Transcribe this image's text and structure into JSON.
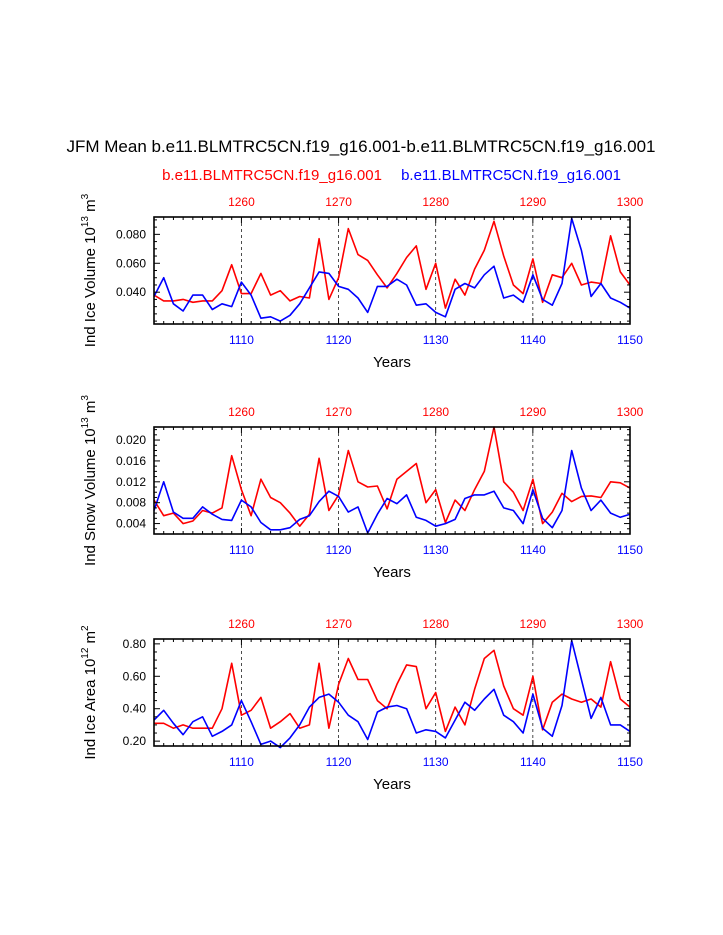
{
  "title": "JFM Mean b.e11.BLMTRC5CN.f19_g16.001-b.e11.BLMTRC5CN.f19_g16.001",
  "legend": {
    "red_label": "b.e11.BLMTRC5CN.f19_g16.001",
    "blue_label": "b.e11.BLMTRC5CN.f19_g16.001"
  },
  "colors": {
    "red": "#ff0000",
    "blue": "#0000ff",
    "axis": "#000000"
  },
  "chart_data": [
    {
      "type": "line",
      "id": "ice-volume",
      "ylabel_main": "Ind Ice Volume 10",
      "ylabel_sup": "13",
      "ylabel_unit": " m",
      "ylabel_unit_sup": "3",
      "xlabel": "Years",
      "ylim": [
        0.018,
        0.092
      ],
      "yticks": [
        0.04,
        0.06,
        0.08
      ],
      "ytick_labels": [
        "0.040",
        "0.060",
        "0.080"
      ],
      "bottom_axis": {
        "range": [
          1101,
          1150
        ],
        "ticks": [
          1110,
          1120,
          1130,
          1140,
          1150
        ],
        "labels": [
          "1110",
          "1120",
          "1130",
          "1140",
          "1150"
        ]
      },
      "top_axis": {
        "ticks": [
          1260,
          1270,
          1280,
          1290,
          1300
        ],
        "labels": [
          "1260",
          "1270",
          "1280",
          "1290",
          "1300"
        ]
      },
      "series": [
        {
          "name": "red",
          "values": [
            0.038,
            0.034,
            0.034,
            0.035,
            0.033,
            0.034,
            0.034,
            0.041,
            0.059,
            0.039,
            0.039,
            0.053,
            0.038,
            0.041,
            0.034,
            0.037,
            0.036,
            0.077,
            0.035,
            0.05,
            0.084,
            0.066,
            0.062,
            0.052,
            0.043,
            0.053,
            0.064,
            0.072,
            0.042,
            0.06,
            0.029,
            0.049,
            0.038,
            0.056,
            0.069,
            0.089,
            0.065,
            0.045,
            0.039,
            0.063,
            0.033,
            0.052,
            0.05,
            0.06,
            0.045,
            0.047,
            0.046,
            0.079,
            0.054,
            0.045
          ]
        },
        {
          "name": "blue",
          "values": [
            0.037,
            0.05,
            0.032,
            0.027,
            0.038,
            0.038,
            0.028,
            0.032,
            0.03,
            0.047,
            0.038,
            0.022,
            0.023,
            0.02,
            0.024,
            0.032,
            0.043,
            0.054,
            0.053,
            0.044,
            0.042,
            0.036,
            0.026,
            0.044,
            0.044,
            0.049,
            0.045,
            0.031,
            0.032,
            0.026,
            0.023,
            0.042,
            0.046,
            0.043,
            0.052,
            0.058,
            0.036,
            0.038,
            0.033,
            0.052,
            0.035,
            0.031,
            0.046,
            0.091,
            0.069,
            0.037,
            0.046,
            0.036,
            0.033,
            0.029
          ]
        }
      ]
    },
    {
      "type": "line",
      "id": "snow-volume",
      "ylabel_main": "Ind Snow Volume 10",
      "ylabel_sup": "13",
      "ylabel_unit": " m",
      "ylabel_unit_sup": "3",
      "xlabel": "Years",
      "ylim": [
        0.002,
        0.0225
      ],
      "yticks": [
        0.004,
        0.008,
        0.012,
        0.016,
        0.02
      ],
      "ytick_labels": [
        "0.004",
        "0.008",
        "0.012",
        "0.016",
        "0.020"
      ],
      "bottom_axis": {
        "range": [
          1101,
          1150
        ],
        "ticks": [
          1110,
          1120,
          1130,
          1140,
          1150
        ],
        "labels": [
          "1110",
          "1120",
          "1130",
          "1140",
          "1150"
        ]
      },
      "top_axis": {
        "ticks": [
          1260,
          1270,
          1280,
          1290,
          1300
        ],
        "labels": [
          "1260",
          "1270",
          "1280",
          "1290",
          "1300"
        ]
      },
      "series": [
        {
          "name": "red",
          "values": [
            0.0085,
            0.0055,
            0.006,
            0.004,
            0.0045,
            0.0065,
            0.006,
            0.007,
            0.017,
            0.0105,
            0.0055,
            0.0125,
            0.009,
            0.008,
            0.006,
            0.0035,
            0.0058,
            0.0165,
            0.0065,
            0.0095,
            0.018,
            0.012,
            0.011,
            0.0112,
            0.0068,
            0.0125,
            0.014,
            0.0155,
            0.008,
            0.0105,
            0.0042,
            0.0085,
            0.0065,
            0.0105,
            0.014,
            0.0225,
            0.012,
            0.01,
            0.0065,
            0.0125,
            0.004,
            0.0062,
            0.0098,
            0.0082,
            0.0092,
            0.0093,
            0.009,
            0.012,
            0.0118,
            0.0108
          ]
        },
        {
          "name": "blue",
          "values": [
            0.0065,
            0.012,
            0.0062,
            0.005,
            0.005,
            0.0072,
            0.0058,
            0.0048,
            0.0046,
            0.0085,
            0.0072,
            0.0042,
            0.0028,
            0.0028,
            0.0032,
            0.0048,
            0.0055,
            0.0082,
            0.0102,
            0.0092,
            0.0062,
            0.0072,
            0.0022,
            0.0058,
            0.0088,
            0.0078,
            0.0095,
            0.0052,
            0.0046,
            0.0035,
            0.004,
            0.0048,
            0.0088,
            0.0095,
            0.0095,
            0.0102,
            0.007,
            0.0065,
            0.004,
            0.0105,
            0.005,
            0.0032,
            0.0065,
            0.018,
            0.0108,
            0.0065,
            0.0085,
            0.006,
            0.0052,
            0.0058
          ]
        }
      ]
    },
    {
      "type": "line",
      "id": "ice-area",
      "ylabel_main": "Ind Ice Area 10",
      "ylabel_sup": "12",
      "ylabel_unit": " m",
      "ylabel_unit_sup": "2",
      "xlabel": "Years",
      "ylim": [
        0.17,
        0.83
      ],
      "yticks": [
        0.2,
        0.4,
        0.6,
        0.8
      ],
      "ytick_labels": [
        "0.20",
        "0.40",
        "0.60",
        "0.80"
      ],
      "bottom_axis": {
        "range": [
          1101,
          1150
        ],
        "ticks": [
          1110,
          1120,
          1130,
          1140,
          1150
        ],
        "labels": [
          "1110",
          "1120",
          "1130",
          "1140",
          "1150"
        ]
      },
      "top_axis": {
        "ticks": [
          1260,
          1270,
          1280,
          1290,
          1300
        ],
        "labels": [
          "1260",
          "1270",
          "1280",
          "1290",
          "1300"
        ]
      },
      "series": [
        {
          "name": "red",
          "values": [
            0.31,
            0.31,
            0.28,
            0.3,
            0.28,
            0.28,
            0.28,
            0.4,
            0.68,
            0.36,
            0.39,
            0.47,
            0.28,
            0.32,
            0.37,
            0.28,
            0.3,
            0.68,
            0.28,
            0.55,
            0.71,
            0.58,
            0.58,
            0.45,
            0.4,
            0.55,
            0.67,
            0.66,
            0.4,
            0.5,
            0.26,
            0.41,
            0.3,
            0.52,
            0.71,
            0.76,
            0.54,
            0.4,
            0.36,
            0.6,
            0.27,
            0.44,
            0.49,
            0.46,
            0.44,
            0.46,
            0.41,
            0.69,
            0.46,
            0.41
          ]
        },
        {
          "name": "blue",
          "values": [
            0.33,
            0.39,
            0.31,
            0.24,
            0.32,
            0.35,
            0.23,
            0.26,
            0.3,
            0.45,
            0.32,
            0.18,
            0.2,
            0.16,
            0.22,
            0.3,
            0.41,
            0.47,
            0.49,
            0.44,
            0.36,
            0.32,
            0.21,
            0.38,
            0.41,
            0.42,
            0.4,
            0.25,
            0.27,
            0.26,
            0.22,
            0.33,
            0.44,
            0.39,
            0.46,
            0.52,
            0.36,
            0.32,
            0.25,
            0.49,
            0.28,
            0.23,
            0.42,
            0.82,
            0.58,
            0.34,
            0.47,
            0.3,
            0.3,
            0.26
          ]
        }
      ]
    }
  ]
}
